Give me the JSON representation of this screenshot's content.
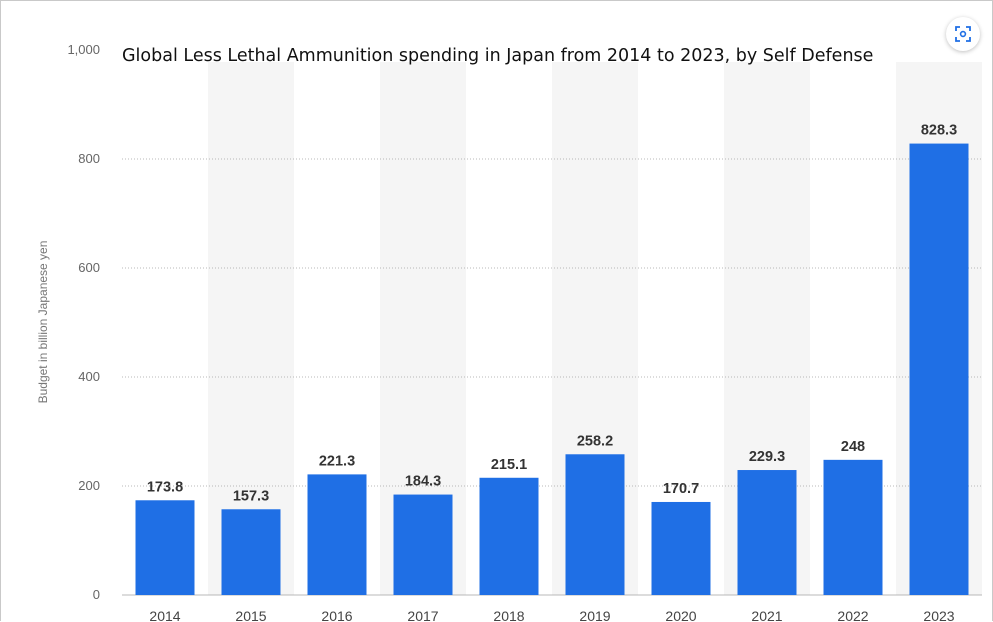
{
  "chart_data": {
    "type": "bar",
    "title": "Global Less Lethal Ammunition spending in Japan from 2014 to 2023, by Self Defense",
    "xlabel": "",
    "ylabel": "Budget in billion Japanese yen",
    "categories": [
      "2014",
      "2015",
      "2016",
      "2017",
      "2018",
      "2019",
      "2020",
      "2021",
      "2022",
      "2023"
    ],
    "values": [
      173.8,
      157.3,
      221.3,
      184.3,
      215.1,
      258.2,
      170.7,
      229.3,
      248,
      828.3
    ],
    "data_labels": [
      "173.8",
      "157.3",
      "221.3",
      "184.3",
      "215.1",
      "258.2",
      "170.7",
      "229.3",
      "248",
      "828.3"
    ],
    "ylim": [
      0,
      1000
    ],
    "yticks": [
      0,
      200,
      400,
      600,
      800,
      1000
    ],
    "ytick_labels": [
      "0",
      "200",
      "400",
      "600",
      "800",
      "1,000"
    ],
    "grid": true,
    "bar_color": "#1f6fe5",
    "band_color": "#f5f5f5"
  },
  "controls": {
    "zoom_icon": "zoom-expand-icon",
    "icon_color": "#1f6fe5"
  }
}
